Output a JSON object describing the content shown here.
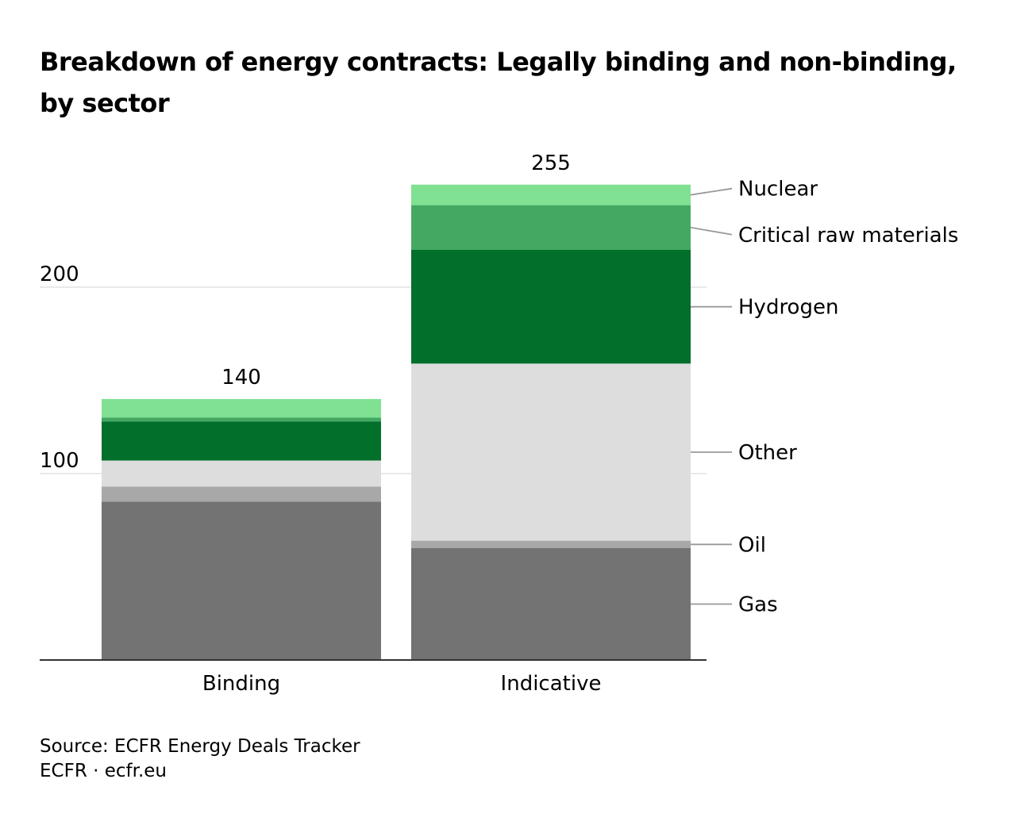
{
  "title": "Breakdown of energy contracts: Legally binding and non-binding, by sector",
  "footer": {
    "source": "Source: ECFR Energy Deals Tracker",
    "credit": "ECFR · ecfr.eu"
  },
  "chart_data": {
    "type": "bar",
    "stacked": true,
    "title": "Breakdown of energy contracts: Legally binding and non-binding, by sector",
    "xlabel": "",
    "ylabel": "",
    "ylim": [
      0,
      255
    ],
    "yticks": [
      100,
      200
    ],
    "grid": true,
    "legend_position": "right, labels aligned to Indicative bar segments",
    "categories": [
      "Binding",
      "Indicative"
    ],
    "totals": [
      140,
      255
    ],
    "total_labels": [
      "140",
      "255"
    ],
    "series": [
      {
        "name": "Gas",
        "color": "#737373",
        "values": [
          85,
          60
        ]
      },
      {
        "name": "Oil",
        "color": "#a8a8a8",
        "values": [
          8,
          4
        ]
      },
      {
        "name": "Other",
        "color": "#dddddd",
        "values": [
          14,
          95
        ]
      },
      {
        "name": "Hydrogen",
        "color": "#026f2b",
        "values": [
          21,
          61
        ]
      },
      {
        "name": "Critical raw materials",
        "color": "#45a862",
        "values": [
          2,
          24
        ]
      },
      {
        "name": "Nuclear",
        "color": "#80e193",
        "values": [
          10,
          11
        ]
      }
    ]
  }
}
